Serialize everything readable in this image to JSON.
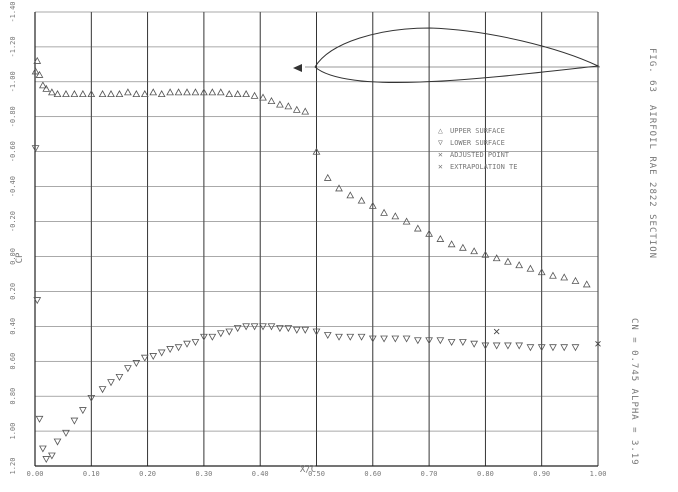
{
  "chart_data": {
    "type": "scatter",
    "xlabel": "X/C",
    "ylabel": "CP",
    "xlim": [
      0.0,
      1.0
    ],
    "ylim": [
      1.2,
      -1.4
    ],
    "y_axis_inverted": true,
    "grid": true,
    "legend_position": "upper-right",
    "x_ticks": [
      {
        "v": 0.0,
        "label": "0.00"
      },
      {
        "v": 0.1,
        "label": "0.10"
      },
      {
        "v": 0.2,
        "label": "0.20"
      },
      {
        "v": 0.3,
        "label": "0.30"
      },
      {
        "v": 0.4,
        "label": "0.40"
      },
      {
        "v": 0.5,
        "label": "0.50"
      },
      {
        "v": 0.6,
        "label": "0.60"
      },
      {
        "v": 0.7,
        "label": "0.70"
      },
      {
        "v": 0.8,
        "label": "0.80"
      },
      {
        "v": 0.9,
        "label": "0.90"
      },
      {
        "v": 1.0,
        "label": "1.00"
      }
    ],
    "y_ticks": [
      {
        "v": -1.4,
        "label": "-1.40"
      },
      {
        "v": -1.2,
        "label": "-1.20"
      },
      {
        "v": -1.0,
        "label": "-1.00"
      },
      {
        "v": -0.8,
        "label": "-0.80"
      },
      {
        "v": -0.6,
        "label": "-0.60"
      },
      {
        "v": -0.4,
        "label": "-0.40"
      },
      {
        "v": -0.2,
        "label": "-0.20"
      },
      {
        "v": 0.0,
        "label": "0.00"
      },
      {
        "v": 0.2,
        "label": "0.20"
      },
      {
        "v": 0.4,
        "label": "0.40"
      },
      {
        "v": 0.6,
        "label": "0.60"
      },
      {
        "v": 0.8,
        "label": "0.80"
      },
      {
        "v": 1.0,
        "label": "1.00"
      },
      {
        "v": 1.2,
        "label": "1.20"
      }
    ],
    "side_annotation": [
      "FIG. 63",
      "AIRFOIL RAE 2822 SECTION",
      "CN = 0.745 ALPHA = 3.19"
    ],
    "series": [
      {
        "name": "UPPER SURFACE",
        "marker": "triangle-up",
        "x": [
          0.001,
          0.004,
          0.008,
          0.014,
          0.02,
          0.03,
          0.04,
          0.055,
          0.07,
          0.085,
          0.1,
          0.12,
          0.135,
          0.15,
          0.165,
          0.18,
          0.195,
          0.21,
          0.225,
          0.24,
          0.255,
          0.27,
          0.285,
          0.3,
          0.315,
          0.33,
          0.345,
          0.36,
          0.375,
          0.39,
          0.405,
          0.42,
          0.435,
          0.45,
          0.465,
          0.48,
          0.5,
          0.52,
          0.54,
          0.56,
          0.58,
          0.6,
          0.62,
          0.64,
          0.66,
          0.68,
          0.7,
          0.72,
          0.74,
          0.76,
          0.78,
          0.8,
          0.82,
          0.84,
          0.86,
          0.88,
          0.9,
          0.92,
          0.94,
          0.96,
          0.98
        ],
        "y": [
          -1.06,
          -1.12,
          -1.04,
          -0.98,
          -0.96,
          -0.94,
          -0.93,
          -0.93,
          -0.93,
          -0.93,
          -0.93,
          -0.93,
          -0.93,
          -0.93,
          -0.94,
          -0.93,
          -0.93,
          -0.94,
          -0.93,
          -0.94,
          -0.94,
          -0.94,
          -0.94,
          -0.94,
          -0.94,
          -0.94,
          -0.93,
          -0.93,
          -0.93,
          -0.92,
          -0.91,
          -0.89,
          -0.87,
          -0.86,
          -0.84,
          -0.83,
          -0.6,
          -0.45,
          -0.39,
          -0.35,
          -0.32,
          -0.29,
          -0.25,
          -0.23,
          -0.2,
          -0.16,
          -0.13,
          -0.1,
          -0.07,
          -0.05,
          -0.03,
          -0.01,
          0.01,
          0.03,
          0.05,
          0.07,
          0.09,
          0.11,
          0.12,
          0.14,
          0.16
        ]
      },
      {
        "name": "LOWER SURFACE",
        "marker": "triangle-down",
        "x": [
          0.001,
          0.004,
          0.008,
          0.014,
          0.02,
          0.03,
          0.04,
          0.055,
          0.07,
          0.085,
          0.1,
          0.12,
          0.135,
          0.15,
          0.165,
          0.18,
          0.195,
          0.21,
          0.225,
          0.24,
          0.255,
          0.27,
          0.285,
          0.3,
          0.315,
          0.33,
          0.345,
          0.36,
          0.375,
          0.39,
          0.405,
          0.42,
          0.435,
          0.45,
          0.465,
          0.48,
          0.5,
          0.52,
          0.54,
          0.56,
          0.58,
          0.6,
          0.62,
          0.64,
          0.66,
          0.68,
          0.7,
          0.72,
          0.74,
          0.76,
          0.78,
          0.8,
          0.82,
          0.84,
          0.86,
          0.88,
          0.9,
          0.92,
          0.94,
          0.96
        ],
        "y": [
          -0.62,
          0.25,
          0.93,
          1.1,
          1.16,
          1.14,
          1.06,
          1.01,
          0.94,
          0.88,
          0.81,
          0.76,
          0.72,
          0.69,
          0.64,
          0.61,
          0.58,
          0.57,
          0.55,
          0.53,
          0.52,
          0.5,
          0.49,
          0.46,
          0.46,
          0.44,
          0.43,
          0.41,
          0.4,
          0.4,
          0.4,
          0.4,
          0.41,
          0.41,
          0.42,
          0.42,
          0.43,
          0.45,
          0.46,
          0.46,
          0.46,
          0.47,
          0.47,
          0.47,
          0.47,
          0.48,
          0.48,
          0.48,
          0.49,
          0.49,
          0.5,
          0.51,
          0.51,
          0.51,
          0.51,
          0.52,
          0.52,
          0.52,
          0.52,
          0.52
        ]
      },
      {
        "name": "ADJUSTED POINT",
        "marker": "x",
        "x": [
          0.82
        ],
        "y": [
          0.43
        ]
      },
      {
        "name": "EXTRAPOLATION TE",
        "marker": "x",
        "x": [
          1.0
        ],
        "y": [
          0.5
        ]
      }
    ],
    "airfoil_inset": true
  },
  "legend": {
    "items": [
      {
        "symbol": "△",
        "label": "UPPER SURFACE"
      },
      {
        "symbol": "▽",
        "label": "LOWER SURFACE"
      },
      {
        "symbol": "✕",
        "label": "ADJUSTED POINT"
      },
      {
        "symbol": "✕",
        "label": "EXTRAPOLATION TE"
      }
    ]
  },
  "colors": {
    "ink": "#666666",
    "grid": "#222222",
    "background": "#ffffff"
  }
}
